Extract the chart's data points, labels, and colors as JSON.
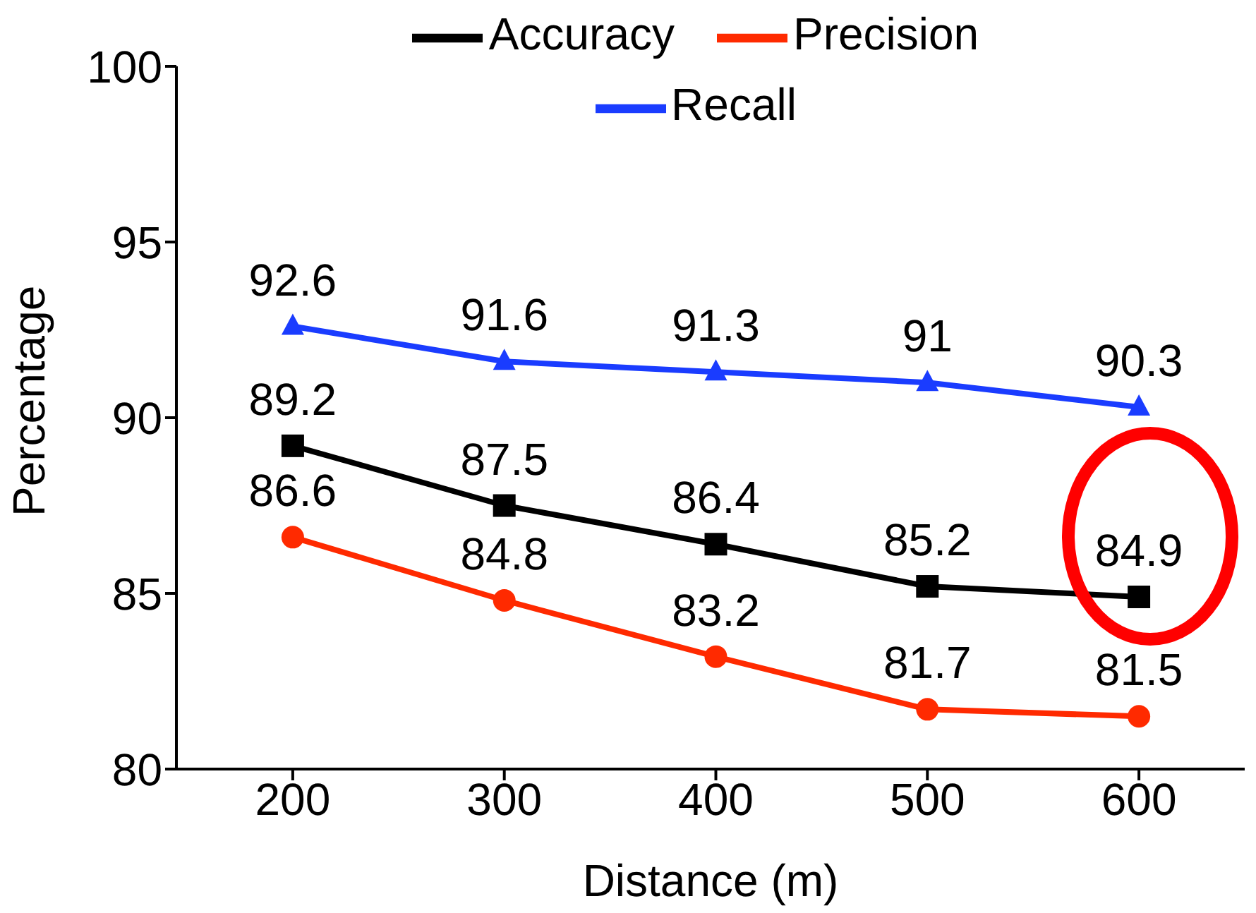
{
  "chart_data": {
    "type": "line",
    "xlabel": "Distance (m)",
    "ylabel": "Percentage",
    "x": [
      200,
      300,
      400,
      500,
      600
    ],
    "series": [
      {
        "name": "Accuracy",
        "color": "#000000",
        "marker": "square",
        "values": [
          89.2,
          87.5,
          86.4,
          85.2,
          84.9
        ]
      },
      {
        "name": "Precision",
        "color": "#ff2a00",
        "marker": "circle",
        "values": [
          86.6,
          84.8,
          83.2,
          81.7,
          81.5
        ]
      },
      {
        "name": "Recall",
        "color": "#1a3cff",
        "marker": "triangle",
        "values": [
          92.6,
          91.6,
          91.3,
          91,
          90.3
        ]
      }
    ],
    "xlim": [
      145,
      650
    ],
    "xticks": [
      200,
      300,
      400,
      500,
      600
    ],
    "ylim": [
      80,
      100
    ],
    "yticks": [
      80,
      85,
      90,
      95,
      100
    ],
    "grid": false,
    "legend": "top",
    "data_labels": true,
    "line_style": "solid"
  }
}
